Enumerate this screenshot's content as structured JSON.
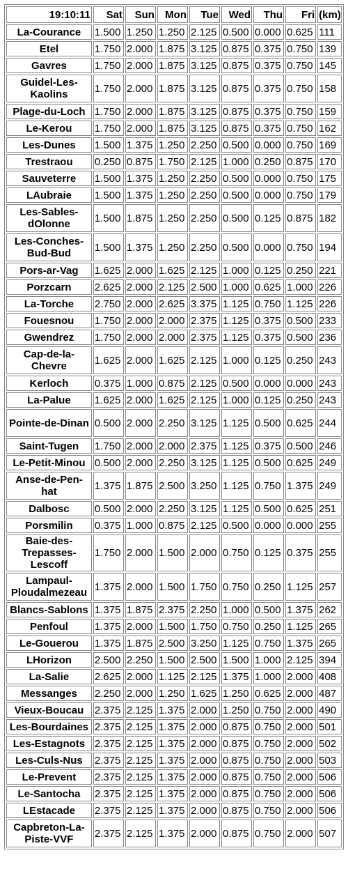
{
  "header": {
    "time": "19:10:11",
    "days": [
      "Sat",
      "Sun",
      "Mon",
      "Tue",
      "Wed",
      "Thu",
      "Fri"
    ],
    "km": "(km)"
  },
  "rows": [
    {
      "name": "La-Courance",
      "values": [
        "1.500",
        "1.250",
        "1.250",
        "2.125",
        "0.500",
        "0.000",
        "0.625"
      ],
      "km": "111"
    },
    {
      "name": "Etel",
      "values": [
        "1.750",
        "2.000",
        "1.875",
        "3.125",
        "0.875",
        "0.375",
        "0.750"
      ],
      "km": "139"
    },
    {
      "name": "Gavres",
      "values": [
        "1.750",
        "2.000",
        "1.875",
        "3.125",
        "0.875",
        "0.375",
        "0.750"
      ],
      "km": "145"
    },
    {
      "name": "Guidel-Les-Kaolins",
      "values": [
        "1.750",
        "2.000",
        "1.875",
        "3.125",
        "0.875",
        "0.375",
        "0.750"
      ],
      "km": "158"
    },
    {
      "name": "Plage-du-Loch",
      "values": [
        "1.750",
        "2.000",
        "1.875",
        "3.125",
        "0.875",
        "0.375",
        "0.750"
      ],
      "km": "159"
    },
    {
      "name": "Le-Kerou",
      "values": [
        "1.750",
        "2.000",
        "1.875",
        "3.125",
        "0.875",
        "0.375",
        "0.750"
      ],
      "km": "162"
    },
    {
      "name": "Les-Dunes",
      "values": [
        "1.500",
        "1.375",
        "1.250",
        "2.250",
        "0.500",
        "0.000",
        "0.750"
      ],
      "km": "169"
    },
    {
      "name": "Trestraou",
      "values": [
        "0.250",
        "0.875",
        "1.750",
        "2.125",
        "1.000",
        "0.250",
        "0.875"
      ],
      "km": "170"
    },
    {
      "name": "Sauveterre",
      "values": [
        "1.500",
        "1.375",
        "1.250",
        "2.250",
        "0.500",
        "0.000",
        "0.750"
      ],
      "km": "175"
    },
    {
      "name": "LAubraie",
      "values": [
        "1.500",
        "1.375",
        "1.250",
        "2.250",
        "0.500",
        "0.000",
        "0.750"
      ],
      "km": "179"
    },
    {
      "name": "Les-Sables-dOlonne",
      "values": [
        "1.500",
        "1.875",
        "1.250",
        "2.250",
        "0.500",
        "0.125",
        "0.875"
      ],
      "km": "182"
    },
    {
      "name": "Les-Conches-Bud-Bud",
      "values": [
        "1.500",
        "1.375",
        "1.250",
        "2.250",
        "0.500",
        "0.000",
        "0.750"
      ],
      "km": "194"
    },
    {
      "name": "Pors-ar-Vag",
      "values": [
        "1.625",
        "2.000",
        "1.625",
        "2.125",
        "1.000",
        "0.125",
        "0.250"
      ],
      "km": "221"
    },
    {
      "name": "Porzcarn",
      "values": [
        "2.625",
        "2.000",
        "2.125",
        "2.500",
        "1.000",
        "0.625",
        "1.000"
      ],
      "km": "226"
    },
    {
      "name": "La-Torche",
      "values": [
        "2.750",
        "2.000",
        "2.625",
        "3.375",
        "1.125",
        "0.750",
        "1.125"
      ],
      "km": "226"
    },
    {
      "name": "Fouesnou",
      "values": [
        "1.750",
        "2.000",
        "2.000",
        "2.375",
        "1.125",
        "0.375",
        "0.500"
      ],
      "km": "233"
    },
    {
      "name": "Gwendrez",
      "values": [
        "1.750",
        "2.000",
        "2.000",
        "2.375",
        "1.125",
        "0.375",
        "0.500"
      ],
      "km": "236"
    },
    {
      "name": "Cap-de-la-Chevre",
      "values": [
        "1.625",
        "2.000",
        "1.625",
        "2.125",
        "1.000",
        "0.125",
        "0.250"
      ],
      "km": "243"
    },
    {
      "name": "Kerloch",
      "values": [
        "0.375",
        "1.000",
        "0.875",
        "2.125",
        "0.500",
        "0.000",
        "0.000"
      ],
      "km": "243"
    },
    {
      "name": "La-Palue",
      "values": [
        "1.625",
        "2.000",
        "1.625",
        "2.125",
        "1.000",
        "0.125",
        "0.250"
      ],
      "km": "243"
    },
    {
      "name": "Pointe-de-Dinan",
      "values": [
        "0.500",
        "2.000",
        "2.250",
        "3.125",
        "1.125",
        "0.500",
        "0.625"
      ],
      "km": "244"
    },
    {
      "name": "Saint-Tugen",
      "values": [
        "1.750",
        "2.000",
        "2.000",
        "2.375",
        "1.125",
        "0.375",
        "0.500"
      ],
      "km": "246"
    },
    {
      "name": "Le-Petit-Minou",
      "values": [
        "0.500",
        "2.000",
        "2.250",
        "3.125",
        "1.125",
        "0.500",
        "0.625"
      ],
      "km": "249"
    },
    {
      "name": "Anse-de-Pen-hat",
      "values": [
        "1.375",
        "1.875",
        "2.500",
        "3.250",
        "1.125",
        "0.750",
        "1.375"
      ],
      "km": "249"
    },
    {
      "name": "Dalbosc",
      "values": [
        "0.500",
        "2.000",
        "2.250",
        "3.125",
        "1.125",
        "0.500",
        "0.625"
      ],
      "km": "251"
    },
    {
      "name": "Porsmilin",
      "values": [
        "0.375",
        "1.000",
        "0.875",
        "2.125",
        "0.500",
        "0.000",
        "0.000"
      ],
      "km": "255"
    },
    {
      "name": "Baie-des-Trepasses-Lescoff",
      "values": [
        "1.750",
        "2.000",
        "1.500",
        "2.000",
        "0.750",
        "0.125",
        "0.375"
      ],
      "km": "255"
    },
    {
      "name": "Lampaul-Ploudalmezeau",
      "values": [
        "1.375",
        "2.000",
        "1.500",
        "1.750",
        "0.750",
        "0.250",
        "1.125"
      ],
      "km": "257"
    },
    {
      "name": "Blancs-Sablons",
      "values": [
        "1.375",
        "1.875",
        "2.375",
        "2.250",
        "1.000",
        "0.500",
        "1.375"
      ],
      "km": "262"
    },
    {
      "name": "Penfoul",
      "values": [
        "1.375",
        "2.000",
        "1.500",
        "1.750",
        "0.750",
        "0.250",
        "1.125"
      ],
      "km": "265"
    },
    {
      "name": "Le-Gouerou",
      "values": [
        "1.375",
        "1.875",
        "2.500",
        "3.250",
        "1.125",
        "0.750",
        "1.375"
      ],
      "km": "265"
    },
    {
      "name": "LHorizon",
      "values": [
        "2.500",
        "2.250",
        "1.500",
        "2.500",
        "1.500",
        "1.000",
        "2.125"
      ],
      "km": "394"
    },
    {
      "name": "La-Salie",
      "values": [
        "2.625",
        "2.000",
        "1.125",
        "2.125",
        "1.375",
        "1.000",
        "2.000"
      ],
      "km": "408"
    },
    {
      "name": "Messanges",
      "values": [
        "2.250",
        "2.000",
        "1.250",
        "1.625",
        "1.250",
        "0.625",
        "2.000"
      ],
      "km": "487"
    },
    {
      "name": "Vieux-Boucau",
      "values": [
        "2.375",
        "2.125",
        "1.375",
        "2.000",
        "1.250",
        "0.750",
        "2.000"
      ],
      "km": "490"
    },
    {
      "name": "Les-Bourdaines",
      "values": [
        "2.375",
        "2.125",
        "1.375",
        "2.000",
        "0.875",
        "0.750",
        "2.000"
      ],
      "km": "501"
    },
    {
      "name": "Les-Estagnots",
      "values": [
        "2.375",
        "2.125",
        "1.375",
        "2.000",
        "0.875",
        "0.750",
        "2.000"
      ],
      "km": "502"
    },
    {
      "name": "Les-Culs-Nus",
      "values": [
        "2.375",
        "2.125",
        "1.375",
        "2.000",
        "0.875",
        "0.750",
        "2.000"
      ],
      "km": "503"
    },
    {
      "name": "Le-Prevent",
      "values": [
        "2.375",
        "2.125",
        "1.375",
        "2.000",
        "0.875",
        "0.750",
        "2.000"
      ],
      "km": "506"
    },
    {
      "name": "Le-Santocha",
      "values": [
        "2.375",
        "2.125",
        "1.375",
        "2.000",
        "0.875",
        "0.750",
        "2.000"
      ],
      "km": "506"
    },
    {
      "name": "LEstacade",
      "values": [
        "2.375",
        "2.125",
        "1.375",
        "2.000",
        "0.875",
        "0.750",
        "2.000"
      ],
      "km": "506"
    },
    {
      "name": "Capbreton-La-Piste-VVF",
      "values": [
        "2.375",
        "2.125",
        "1.375",
        "2.000",
        "0.875",
        "0.750",
        "2.000"
      ],
      "km": "507"
    }
  ]
}
